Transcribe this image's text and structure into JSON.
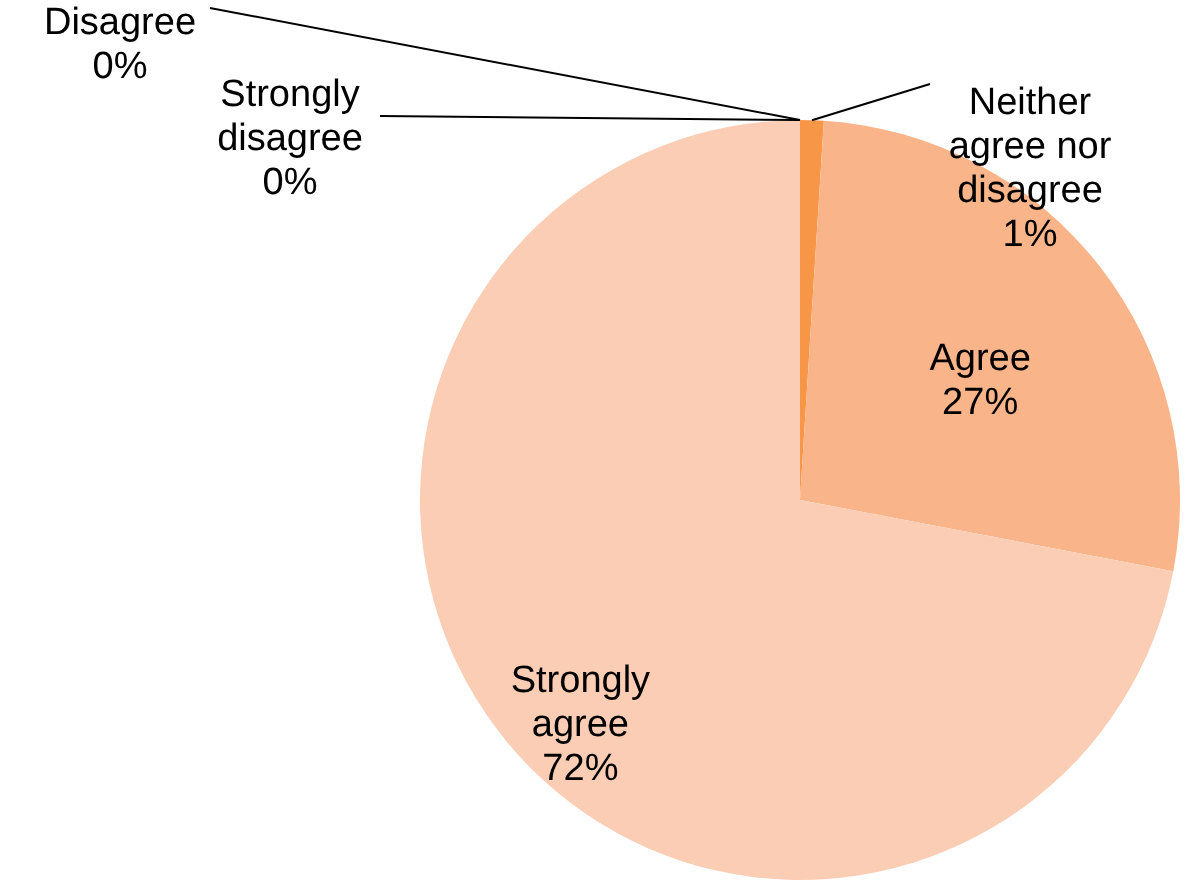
{
  "chart_data": {
    "type": "pie",
    "categories": [
      "Neither agree nor disagree",
      "Agree",
      "Strongly agree",
      "Strongly disagree",
      "Disagree"
    ],
    "values": [
      1,
      27,
      72,
      0,
      0
    ],
    "colors": [
      "#f79646",
      "#f9b48a",
      "#fbcdb4",
      "#e46c0a",
      "#c0504d"
    ],
    "value_labels": [
      "1%",
      "27%",
      "72%",
      "0%",
      "0%"
    ]
  }
}
